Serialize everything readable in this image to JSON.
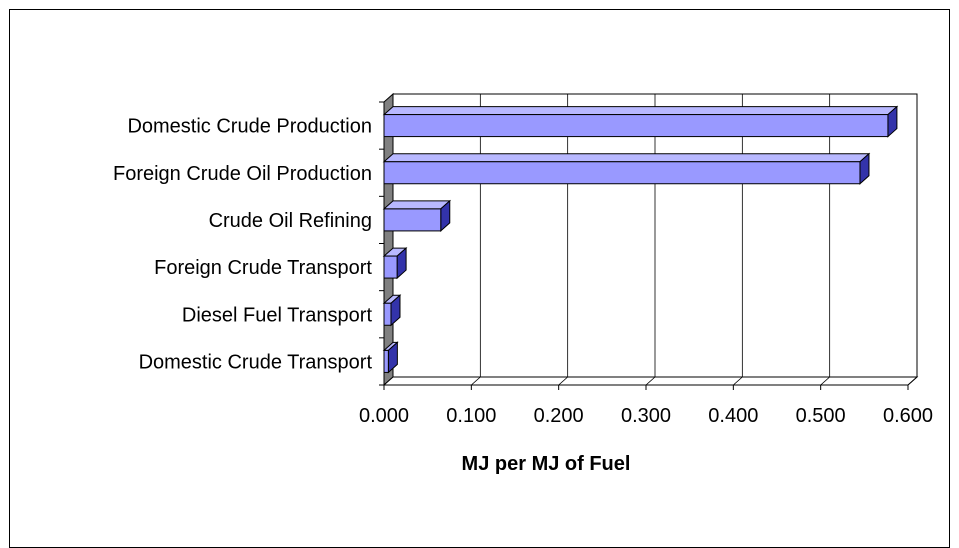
{
  "chart_data": {
    "type": "bar",
    "orientation": "horizontal",
    "categories": [
      "Domestic Crude Production",
      "Foreign Crude Oil Production",
      "Crude Oil Refining",
      "Foreign Crude Transport",
      "Diesel Fuel Transport",
      "Domestic Crude Transport"
    ],
    "values": [
      0.577,
      0.545,
      0.065,
      0.015,
      0.008,
      0.005
    ],
    "title": "",
    "xlabel": "MJ per MJ of Fuel",
    "ylabel": "",
    "xlim": [
      0,
      0.6
    ],
    "tick_labels": [
      "0.000",
      "0.100",
      "0.200",
      "0.300",
      "0.400",
      "0.500",
      "0.600"
    ],
    "grid": true,
    "legend": "none",
    "style": "3d",
    "colors": {
      "bar_front": "#9999ff",
      "bar_top": "#b8b8ff",
      "bar_side": "#3333aa",
      "wall": "#ffffff",
      "wall_left": "#808080",
      "gridline": "#000000"
    }
  }
}
